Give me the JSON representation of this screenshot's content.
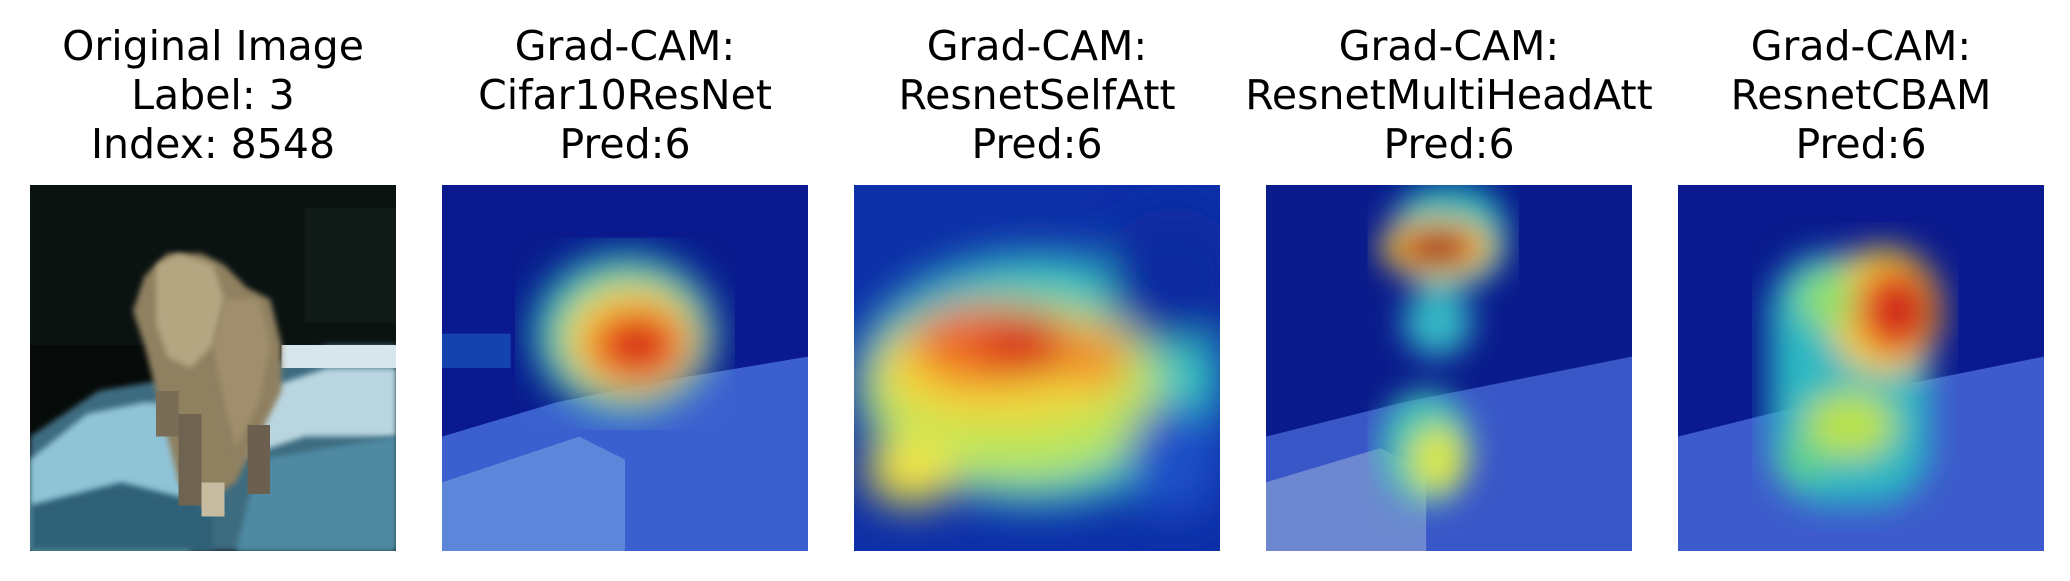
{
  "panels": [
    {
      "lines": [
        "Original Image",
        "Label: 3",
        "Index: 8548"
      ],
      "kind": "original"
    },
    {
      "lines": [
        "Grad-CAM:",
        "Cifar10ResNet",
        "Pred:6"
      ],
      "kind": "cam"
    },
    {
      "lines": [
        "Grad-CAM:",
        "ResnetSelfAtt",
        "Pred:6"
      ],
      "kind": "cam"
    },
    {
      "lines": [
        "Grad-CAM:",
        "ResnetMultiHeadAtt",
        "Pred:6"
      ],
      "kind": "cam"
    },
    {
      "lines": [
        "Grad-CAM:",
        "ResnetCBAM",
        "Pred:6"
      ],
      "kind": "cam"
    }
  ],
  "colors": {
    "jet_low": "#00007f",
    "jet_mid": "#7fff7f",
    "jet_high": "#7f0000",
    "background": "#ffffff"
  }
}
